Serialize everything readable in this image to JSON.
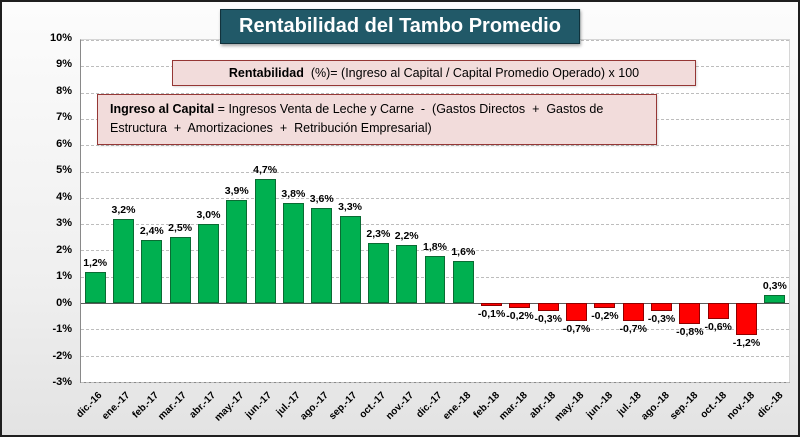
{
  "title": "Rentabilidad del Tambo Promedio",
  "formula_rentabilidad": {
    "bold": "Rentabilidad",
    "rest": "  (%)= (Ingreso al Capital / Capital Promedio Operado) x 100"
  },
  "formula_ingreso": {
    "bold": "Ingreso al Capital",
    "rest": " = Ingresos Venta de Leche y Carne  -  (Gastos Directos  +  Gastos de Estructura  +  Amortizaciones  +  Retribución Empresarial)"
  },
  "chart_data": {
    "type": "bar",
    "title": "Rentabilidad del Tambo Promedio",
    "xlabel": "",
    "ylabel": "",
    "categories": [
      "dic.-16",
      "ene.-17",
      "feb.-17",
      "mar.-17",
      "abr.-17",
      "may.-17",
      "jun.-17",
      "jul.-17",
      "ago.-17",
      "sep.-17",
      "oct.-17",
      "nov.-17",
      "dic.-17",
      "ene.-18",
      "feb.-18",
      "mar.-18",
      "abr.-18",
      "may.-18",
      "jun.-18",
      "jul.-18",
      "ago.-18",
      "sep.-18",
      "oct.-18",
      "nov.-18",
      "dic.-18"
    ],
    "values": [
      1.2,
      3.2,
      2.4,
      2.5,
      3.0,
      3.9,
      4.7,
      3.8,
      3.6,
      3.3,
      2.3,
      2.2,
      1.8,
      1.6,
      -0.1,
      -0.2,
      -0.3,
      -0.7,
      -0.2,
      -0.7,
      -0.3,
      -0.8,
      -0.6,
      -1.2,
      0.3
    ],
    "data_labels": [
      "1,2%",
      "3,2%",
      "2,4%",
      "2,5%",
      "3,0%",
      "3,9%",
      "4,7%",
      "3,8%",
      "3,6%",
      "3,3%",
      "2,3%",
      "2,2%",
      "1,8%",
      "1,6%",
      "-0,1%",
      "-0,2%",
      "-0,3%",
      "-0,7%",
      "-0,2%",
      "-0,7%",
      "-0,3%",
      "-0,8%",
      "-0,6%",
      "-1,2%",
      "0,3%"
    ],
    "y_ticks": [
      "10%",
      "9%",
      "8%",
      "7%",
      "6%",
      "5%",
      "4%",
      "3%",
      "2%",
      "1%",
      "0%",
      "-1%",
      "-2%",
      "-3%"
    ],
    "ylim": [
      -3,
      10
    ],
    "grid": "horizontal-dashed",
    "legend": "none",
    "colors": {
      "positive": "#00B050",
      "positive_border": "#0a6b33",
      "negative": "#FF0000",
      "negative_border": "#8f0000",
      "title_background": "#215968",
      "annotation_background": "#f2dcdb",
      "annotation_border": "#953735"
    }
  }
}
